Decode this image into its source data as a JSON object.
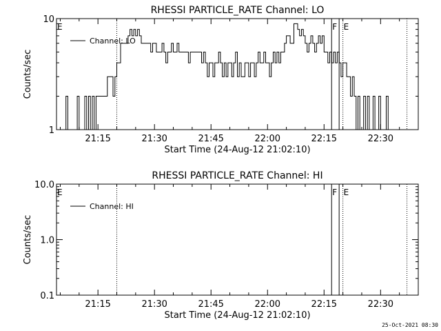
{
  "page": {
    "timestamp": "25-Oct-2021 08:30"
  },
  "chart_data": [
    {
      "type": "line",
      "title": "RHESSI PARTICLE_RATE Channel: LO",
      "xlabel": "Start Time (24-Aug-12 21:02:10)",
      "ylabel": "Counts/sec",
      "yscale": "log",
      "ylim": [
        1,
        10
      ],
      "ytick_values": [
        1,
        10
      ],
      "ytick_labels": [
        "1",
        "10"
      ],
      "xlim": [
        "21:04",
        "22:40"
      ],
      "xtick_values": [
        "21:15",
        "21:30",
        "21:45",
        "22:00",
        "22:15",
        "22:30"
      ],
      "xtick_labels": [
        "21:15",
        "21:30",
        "21:45",
        "22:00",
        "22:15",
        "22:30"
      ],
      "legend": {
        "label": "Channel: LO",
        "position": "top-left"
      },
      "flag_lines": [
        {
          "time": "21:04",
          "style": "solid",
          "label": "E"
        },
        {
          "time": "21:20",
          "style": "dotted",
          "label": ""
        },
        {
          "time": "22:17",
          "style": "solid",
          "label": "F"
        },
        {
          "time": "22:19",
          "style": "solid",
          "label": ""
        },
        {
          "time": "22:20",
          "style": "dotted",
          "label": "E"
        },
        {
          "time": "22:37",
          "style": "dotted",
          "label": ""
        }
      ],
      "series": [
        {
          "color": "#000000",
          "x_start": "21:06",
          "x_step_minutes": 0.5,
          "values": [
            1,
            2,
            1,
            1,
            1,
            1,
            1,
            2,
            1,
            1,
            1,
            2,
            1,
            2,
            1,
            2,
            1,
            2,
            2,
            2,
            2,
            2,
            2,
            3,
            3,
            3,
            2,
            3,
            4,
            4,
            6,
            6,
            6,
            6,
            7,
            8,
            7,
            8,
            7,
            8,
            7,
            6,
            6,
            6,
            6,
            6,
            5,
            6,
            6,
            5,
            5,
            5,
            6,
            5,
            4,
            5,
            5,
            6,
            5,
            5,
            6,
            5,
            5,
            5,
            5,
            5,
            4,
            5,
            5,
            5,
            5,
            5,
            5,
            4,
            5,
            4,
            3,
            4,
            4,
            3,
            4,
            4,
            5,
            4,
            3,
            4,
            3,
            4,
            4,
            3,
            4,
            5,
            3,
            4,
            3,
            3,
            4,
            4,
            3,
            4,
            4,
            3,
            4,
            5,
            4,
            4,
            5,
            4,
            4,
            3,
            4,
            5,
            4,
            5,
            4,
            5,
            5,
            6,
            7,
            7,
            6,
            6,
            9,
            9,
            8,
            7,
            8,
            7,
            6,
            5,
            6,
            7,
            6,
            5,
            6,
            7,
            6,
            7,
            5,
            5,
            4,
            5,
            4,
            5,
            4,
            5,
            4,
            3,
            4,
            4,
            3,
            3,
            2,
            3,
            2,
            1,
            2,
            1,
            1,
            2,
            1,
            2,
            1,
            1,
            2,
            1,
            1,
            2,
            1,
            1,
            1,
            2,
            1,
            1,
            1,
            1,
            1
          ]
        }
      ]
    },
    {
      "type": "line",
      "title": "RHESSI PARTICLE_RATE Channel: HI",
      "xlabel": "Start Time (24-Aug-12 21:02:10)",
      "ylabel": "Counts/sec",
      "yscale": "log",
      "ylim": [
        0.1,
        10
      ],
      "ytick_values": [
        0.1,
        1,
        10
      ],
      "ytick_labels": [
        "0.1",
        "1.0",
        "10.0"
      ],
      "xlim": [
        "21:04",
        "22:40"
      ],
      "xtick_values": [
        "21:15",
        "21:30",
        "21:45",
        "22:00",
        "22:15",
        "22:30"
      ],
      "xtick_labels": [
        "21:15",
        "21:30",
        "21:45",
        "22:00",
        "22:15",
        "22:30"
      ],
      "legend": {
        "label": "Channel: HI",
        "position": "top-left"
      },
      "flag_lines": [
        {
          "time": "21:04",
          "style": "solid",
          "label": "E"
        },
        {
          "time": "21:20",
          "style": "dotted",
          "label": ""
        },
        {
          "time": "22:17",
          "style": "solid",
          "label": "F"
        },
        {
          "time": "22:19",
          "style": "solid",
          "label": ""
        },
        {
          "time": "22:20",
          "style": "dotted",
          "label": "E"
        },
        {
          "time": "22:37",
          "style": "dotted",
          "label": ""
        }
      ],
      "series": []
    }
  ]
}
